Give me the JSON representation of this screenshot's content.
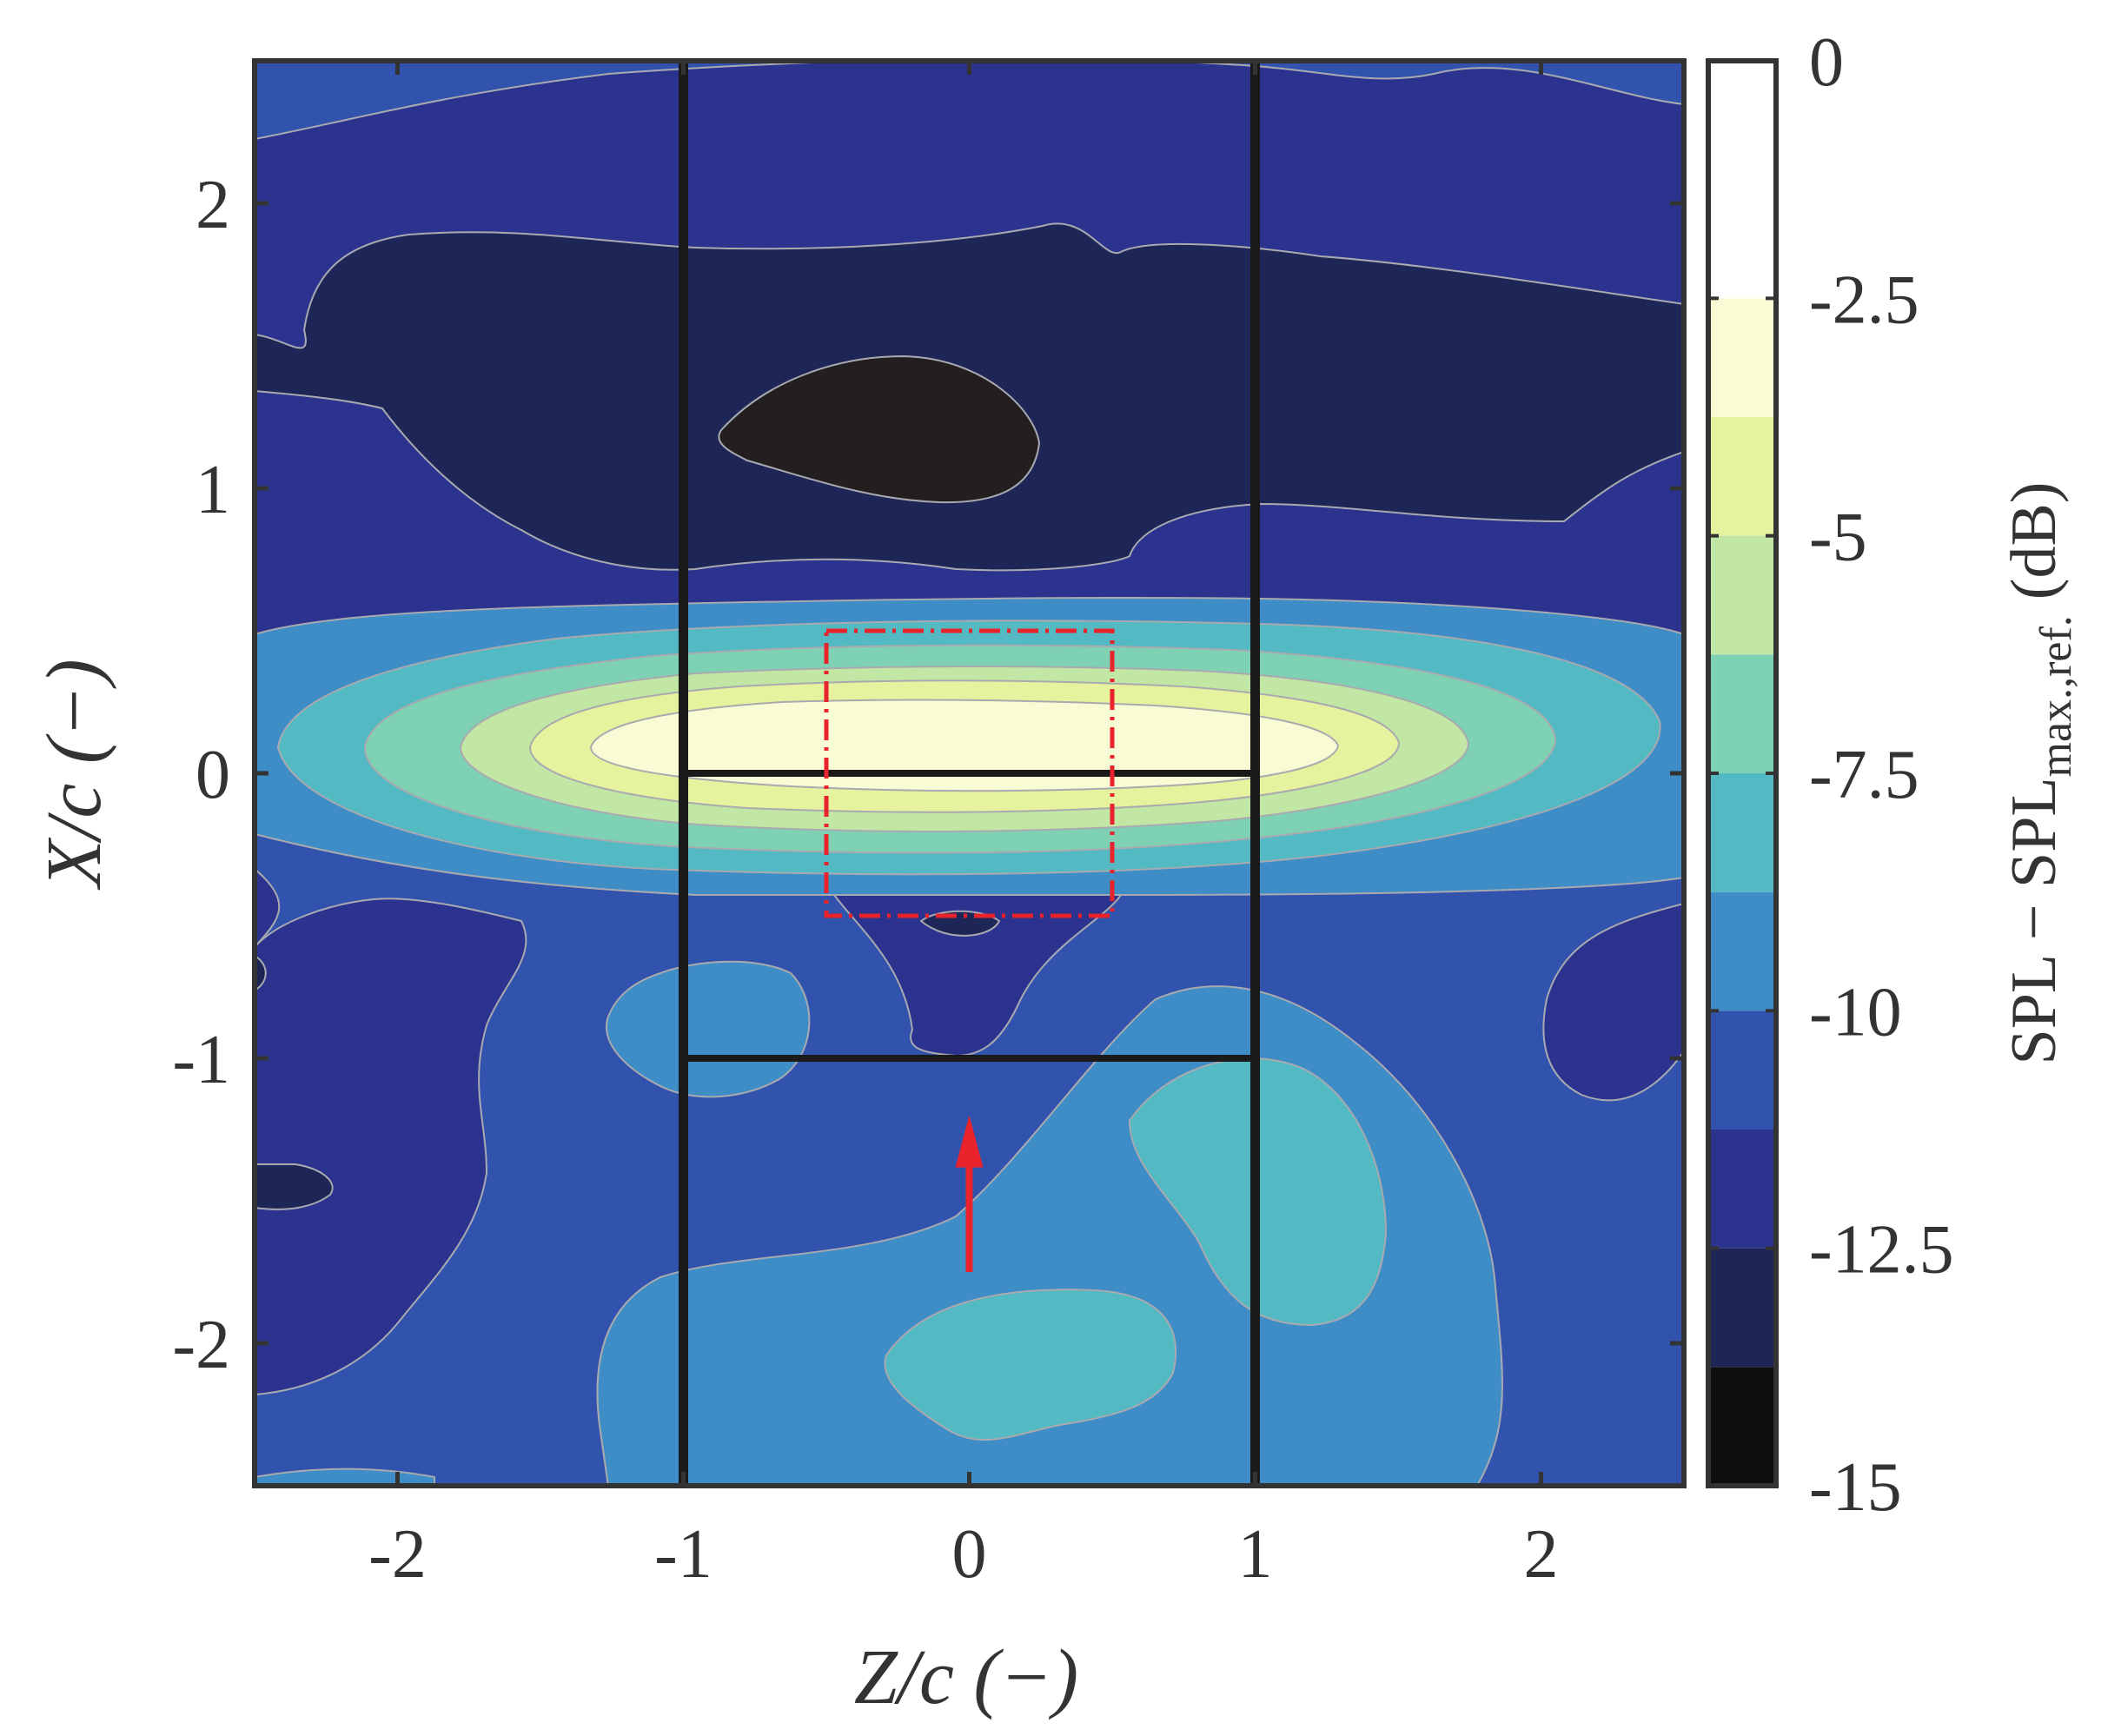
{
  "chart_data": {
    "type": "heatmap",
    "subtype": "filled-contour",
    "xlabel": "Z/c (−)",
    "ylabel": "X/c (−)",
    "xlim": [
      -2.5,
      2.5
    ],
    "ylim": [
      -2.5,
      2.5
    ],
    "xticks": [
      -2,
      -1,
      0,
      1,
      2
    ],
    "yticks": [
      -2,
      -1,
      0,
      1,
      2
    ],
    "xtick_labels": [
      "-2",
      "-1",
      "0",
      "1",
      "2"
    ],
    "ytick_labels": [
      "-2",
      "-1",
      "0",
      "1",
      "2"
    ],
    "colorbar": {
      "label_main": "SPL − SPL",
      "label_sub": "max.,ref.",
      "label_unit": "(dB)",
      "range": [
        -15,
        0
      ],
      "ticks": [
        0,
        -2.5,
        -5,
        -7.5,
        -10,
        -12.5,
        -15
      ],
      "tick_labels": [
        "0",
        "-2.5",
        "-5",
        "-7.5",
        "-10",
        "-12.5",
        "-15"
      ],
      "levels": [
        {
          "from": -15,
          "to": -13.75,
          "color": "#0e0e0e"
        },
        {
          "from": -13.75,
          "to": -12.5,
          "color": "#1e2657"
        },
        {
          "from": -12.5,
          "to": -11.25,
          "color": "#2b338f"
        },
        {
          "from": -11.25,
          "to": -10,
          "color": "#3253ad"
        },
        {
          "from": -10,
          "to": -8.75,
          "color": "#3e8dc6"
        },
        {
          "from": -8.75,
          "to": -7.5,
          "color": "#53b9c3"
        },
        {
          "from": -7.5,
          "to": -6.25,
          "color": "#7fd1b4"
        },
        {
          "from": -6.25,
          "to": -5,
          "color": "#c2e6a4"
        },
        {
          "from": -5,
          "to": -3.75,
          "color": "#e6f29e"
        },
        {
          "from": -3.75,
          "to": -2.5,
          "color": "#f8fbd3"
        },
        {
          "from": -2.5,
          "to": 0,
          "color": "#ffffff"
        }
      ]
    },
    "overlays": {
      "vertical_lines_z": [
        -1,
        1
      ],
      "horizontal_segments": [
        {
          "x": 0,
          "z_from": -1,
          "z_to": 1
        },
        {
          "x": -1,
          "z_from": -1,
          "z_to": 1
        }
      ],
      "dashed_box": {
        "z": [
          -0.5,
          0.5
        ],
        "x": [
          -0.5,
          0.5
        ],
        "color": "#e8232b"
      },
      "arrow": {
        "z": 0,
        "x_from": -1.75,
        "x_to": -1.2,
        "color": "#e8232b"
      }
    },
    "grid": false,
    "legend": "none"
  }
}
